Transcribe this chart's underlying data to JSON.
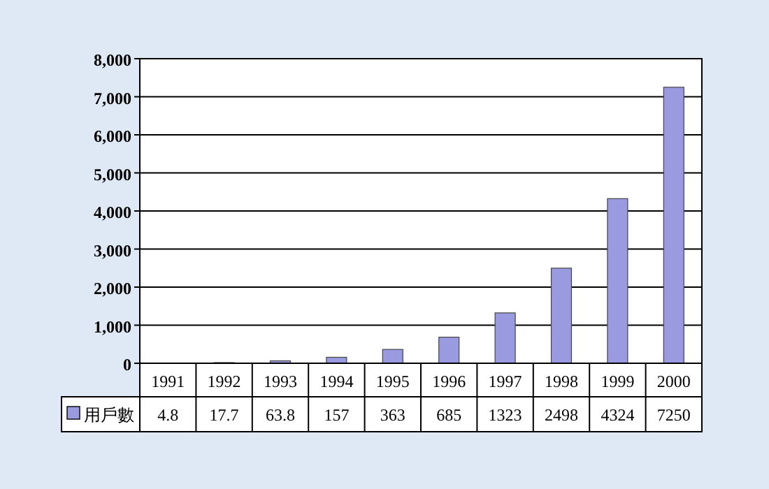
{
  "chart_data": {
    "type": "bar",
    "categories": [
      "1991",
      "1992",
      "1993",
      "1994",
      "1995",
      "1996",
      "1997",
      "1998",
      "1999",
      "2000"
    ],
    "series": [
      {
        "name": "用戶數",
        "color": "#9a9ae0",
        "values": [
          4.8,
          17.7,
          63.8,
          157,
          363,
          685,
          1323,
          2498,
          4324,
          7250
        ]
      }
    ],
    "ylim": [
      0,
      8000
    ],
    "yticks": [
      {
        "value": 0,
        "label": "0"
      },
      {
        "value": 1000,
        "label": "1,000"
      },
      {
        "value": 2000,
        "label": "2,000"
      },
      {
        "value": 3000,
        "label": "3,000"
      },
      {
        "value": 4000,
        "label": "4,000"
      },
      {
        "value": 5000,
        "label": "5,000"
      },
      {
        "value": 6000,
        "label": "6,000"
      },
      {
        "value": 7000,
        "label": "7,000"
      },
      {
        "value": 8000,
        "label": "8,000"
      }
    ],
    "grid": "y",
    "legend": "bottom",
    "data_labels": true
  }
}
